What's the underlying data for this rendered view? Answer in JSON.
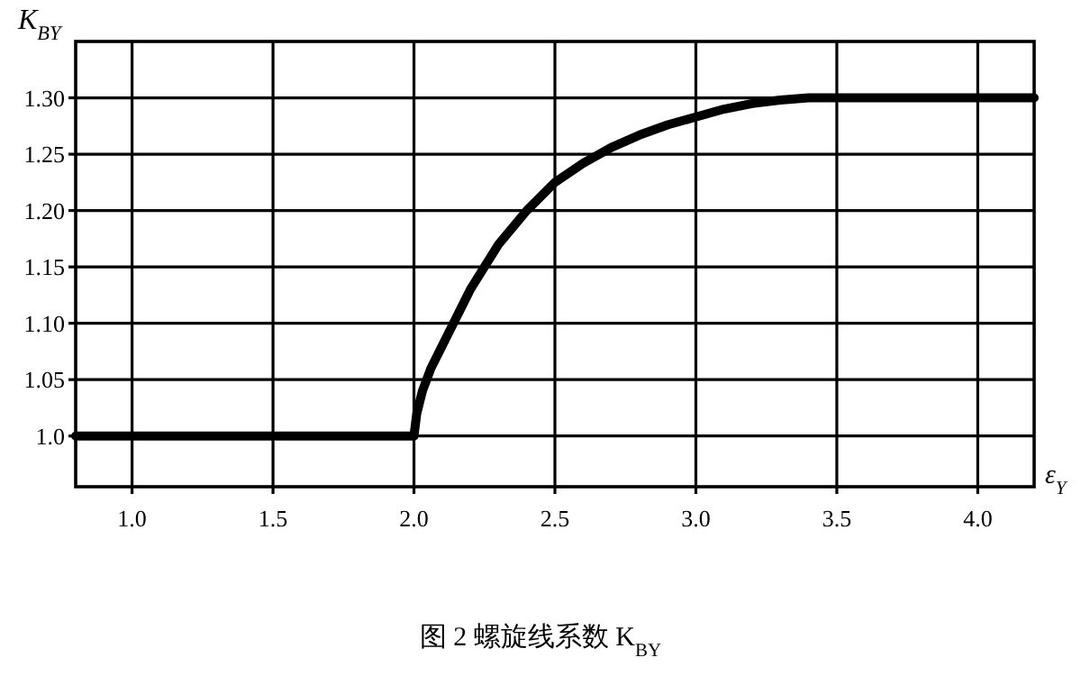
{
  "chart_data": {
    "type": "line",
    "title": "图 2  螺旋线系数 K$_{BY}$",
    "xlabel": "ε$_{Y}$",
    "ylabel": "K$_{BY}$",
    "x": [
      0.8,
      1.0,
      1.5,
      2.0,
      2.01,
      2.03,
      2.06,
      2.1,
      2.15,
      2.2,
      2.3,
      2.4,
      2.5,
      2.6,
      2.7,
      2.8,
      2.9,
      3.0,
      3.1,
      3.2,
      3.3,
      3.4,
      3.5,
      4.0,
      4.2
    ],
    "series": [
      {
        "color": "#000000",
        "values": [
          1.0,
          1.0,
          1.0,
          1.0,
          1.02,
          1.04,
          1.06,
          1.08,
          1.105,
          1.13,
          1.17,
          1.2,
          1.225,
          1.242,
          1.256,
          1.267,
          1.276,
          1.283,
          1.29,
          1.295,
          1.298,
          1.3,
          1.3,
          1.3,
          1.3
        ]
      }
    ],
    "xlim": [
      0.8,
      4.2
    ],
    "ylim": [
      0.955,
      1.35
    ],
    "xticks": [
      {
        "value": 1.0,
        "label": "1.0"
      },
      1.5,
      {
        "value": 2.0,
        "label": "2.0"
      },
      2.5,
      {
        "value": 3.0,
        "label": "3.0"
      },
      3.5,
      {
        "value": 4.0,
        "label": "4.0"
      }
    ],
    "yticks": [
      {
        "value": 1.0,
        "label": "1.0"
      },
      1.05,
      {
        "value": 1.1,
        "label": "1.10"
      },
      1.15,
      {
        "value": 1.2,
        "label": "1.20"
      },
      1.25,
      {
        "value": 1.3,
        "label": "1.30"
      }
    ],
    "grid": true,
    "marker": "none",
    "line_style": "solid"
  }
}
